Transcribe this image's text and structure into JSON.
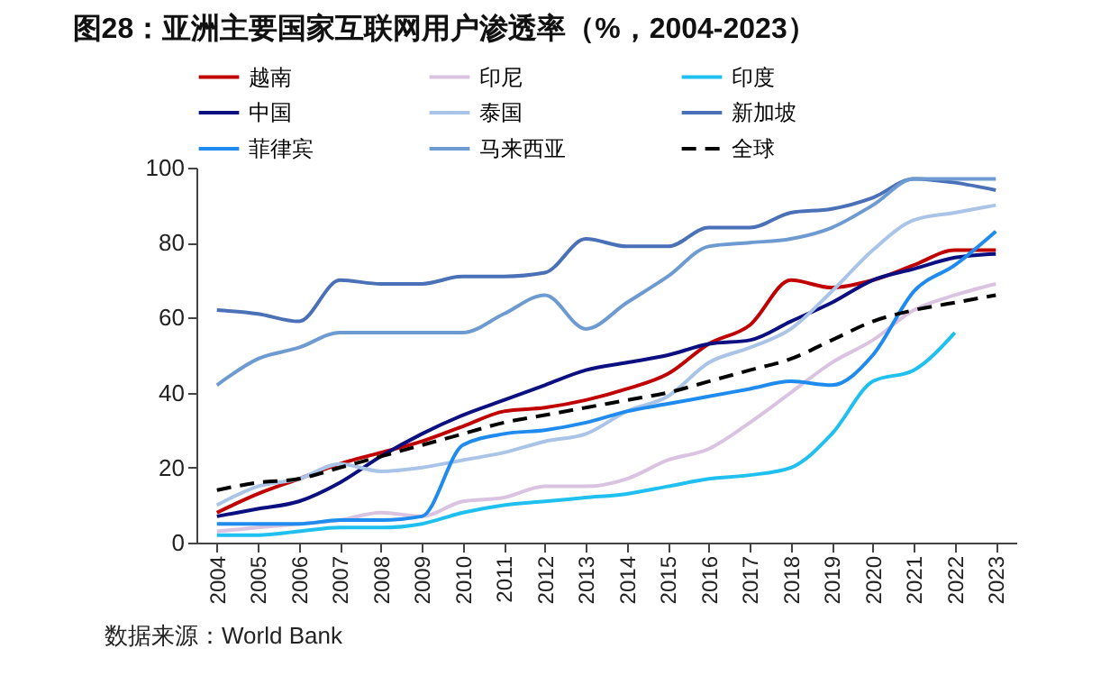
{
  "chart_data": {
    "type": "line",
    "title": "图28：亚洲主要国家互联网用户渗透率（%，2004-2023）",
    "categories": [
      "2004",
      "2005",
      "2006",
      "2007",
      "2008",
      "2009",
      "2010",
      "2011",
      "2012",
      "2013",
      "2014",
      "2015",
      "2016",
      "2017",
      "2018",
      "2019",
      "2020",
      "2021",
      "2022",
      "2023"
    ],
    "series": [
      {
        "name": "越南",
        "color": "#c00000",
        "values": [
          8,
          13,
          17,
          21,
          24,
          27,
          31,
          35,
          36,
          38,
          41,
          45,
          53,
          58,
          70,
          68,
          70,
          74,
          78,
          78
        ]
      },
      {
        "name": "印尼",
        "color": "#d9c3e0",
        "values": [
          3,
          4,
          5,
          6,
          8,
          7,
          11,
          12,
          15,
          15,
          17,
          22,
          25,
          32,
          40,
          48,
          54,
          62,
          66,
          69
        ]
      },
      {
        "name": "印度",
        "color": "#1fbfef",
        "values": [
          2,
          2,
          3,
          4,
          4,
          5,
          8,
          10,
          11,
          12,
          13,
          15,
          17,
          18,
          20,
          29,
          43,
          46,
          56,
          null
        ]
      },
      {
        "name": "中国",
        "color": "#0b0f80",
        "values": [
          7,
          9,
          11,
          16,
          23,
          29,
          34,
          38,
          42,
          46,
          48,
          50,
          53,
          54,
          59,
          64,
          70,
          73,
          76,
          77
        ]
      },
      {
        "name": "泰国",
        "color": "#a9c4e6",
        "values": [
          10,
          15,
          17,
          21,
          19,
          20,
          22,
          24,
          27,
          29,
          35,
          39,
          48,
          52,
          57,
          67,
          78,
          86,
          88,
          90
        ]
      },
      {
        "name": "新加坡",
        "color": "#4a70b8",
        "values": [
          62,
          61,
          59,
          70,
          69,
          69,
          71,
          71,
          72,
          81,
          79,
          79,
          84,
          84,
          88,
          89,
          92,
          97,
          96,
          94
        ]
      },
      {
        "name": "菲律宾",
        "color": "#1f8bef",
        "values": [
          5,
          5,
          5,
          6,
          6,
          7,
          26,
          29,
          30,
          32,
          35,
          37,
          39,
          41,
          43,
          42,
          50,
          67,
          74,
          83
        ]
      },
      {
        "name": "马来西亚",
        "color": "#6d9bd1",
        "values": [
          42,
          49,
          52,
          56,
          56,
          56,
          56,
          61,
          66,
          57,
          64,
          71,
          79,
          80,
          81,
          84,
          90,
          97,
          97,
          97
        ]
      },
      {
        "name": "全球",
        "color": "#000000",
        "line_style": "dashed",
        "values": [
          14,
          16,
          17,
          20,
          23,
          26,
          29,
          32,
          34,
          36,
          38,
          40,
          43,
          46,
          49,
          54,
          59,
          62,
          64,
          66
        ]
      }
    ],
    "ylim": [
      0,
      100
    ],
    "yticks": [
      0,
      20,
      40,
      60,
      80,
      100
    ],
    "grid": false,
    "legend": "top",
    "line_style": "solid",
    "annotations": [
      "数据来源：World Bank"
    ]
  }
}
